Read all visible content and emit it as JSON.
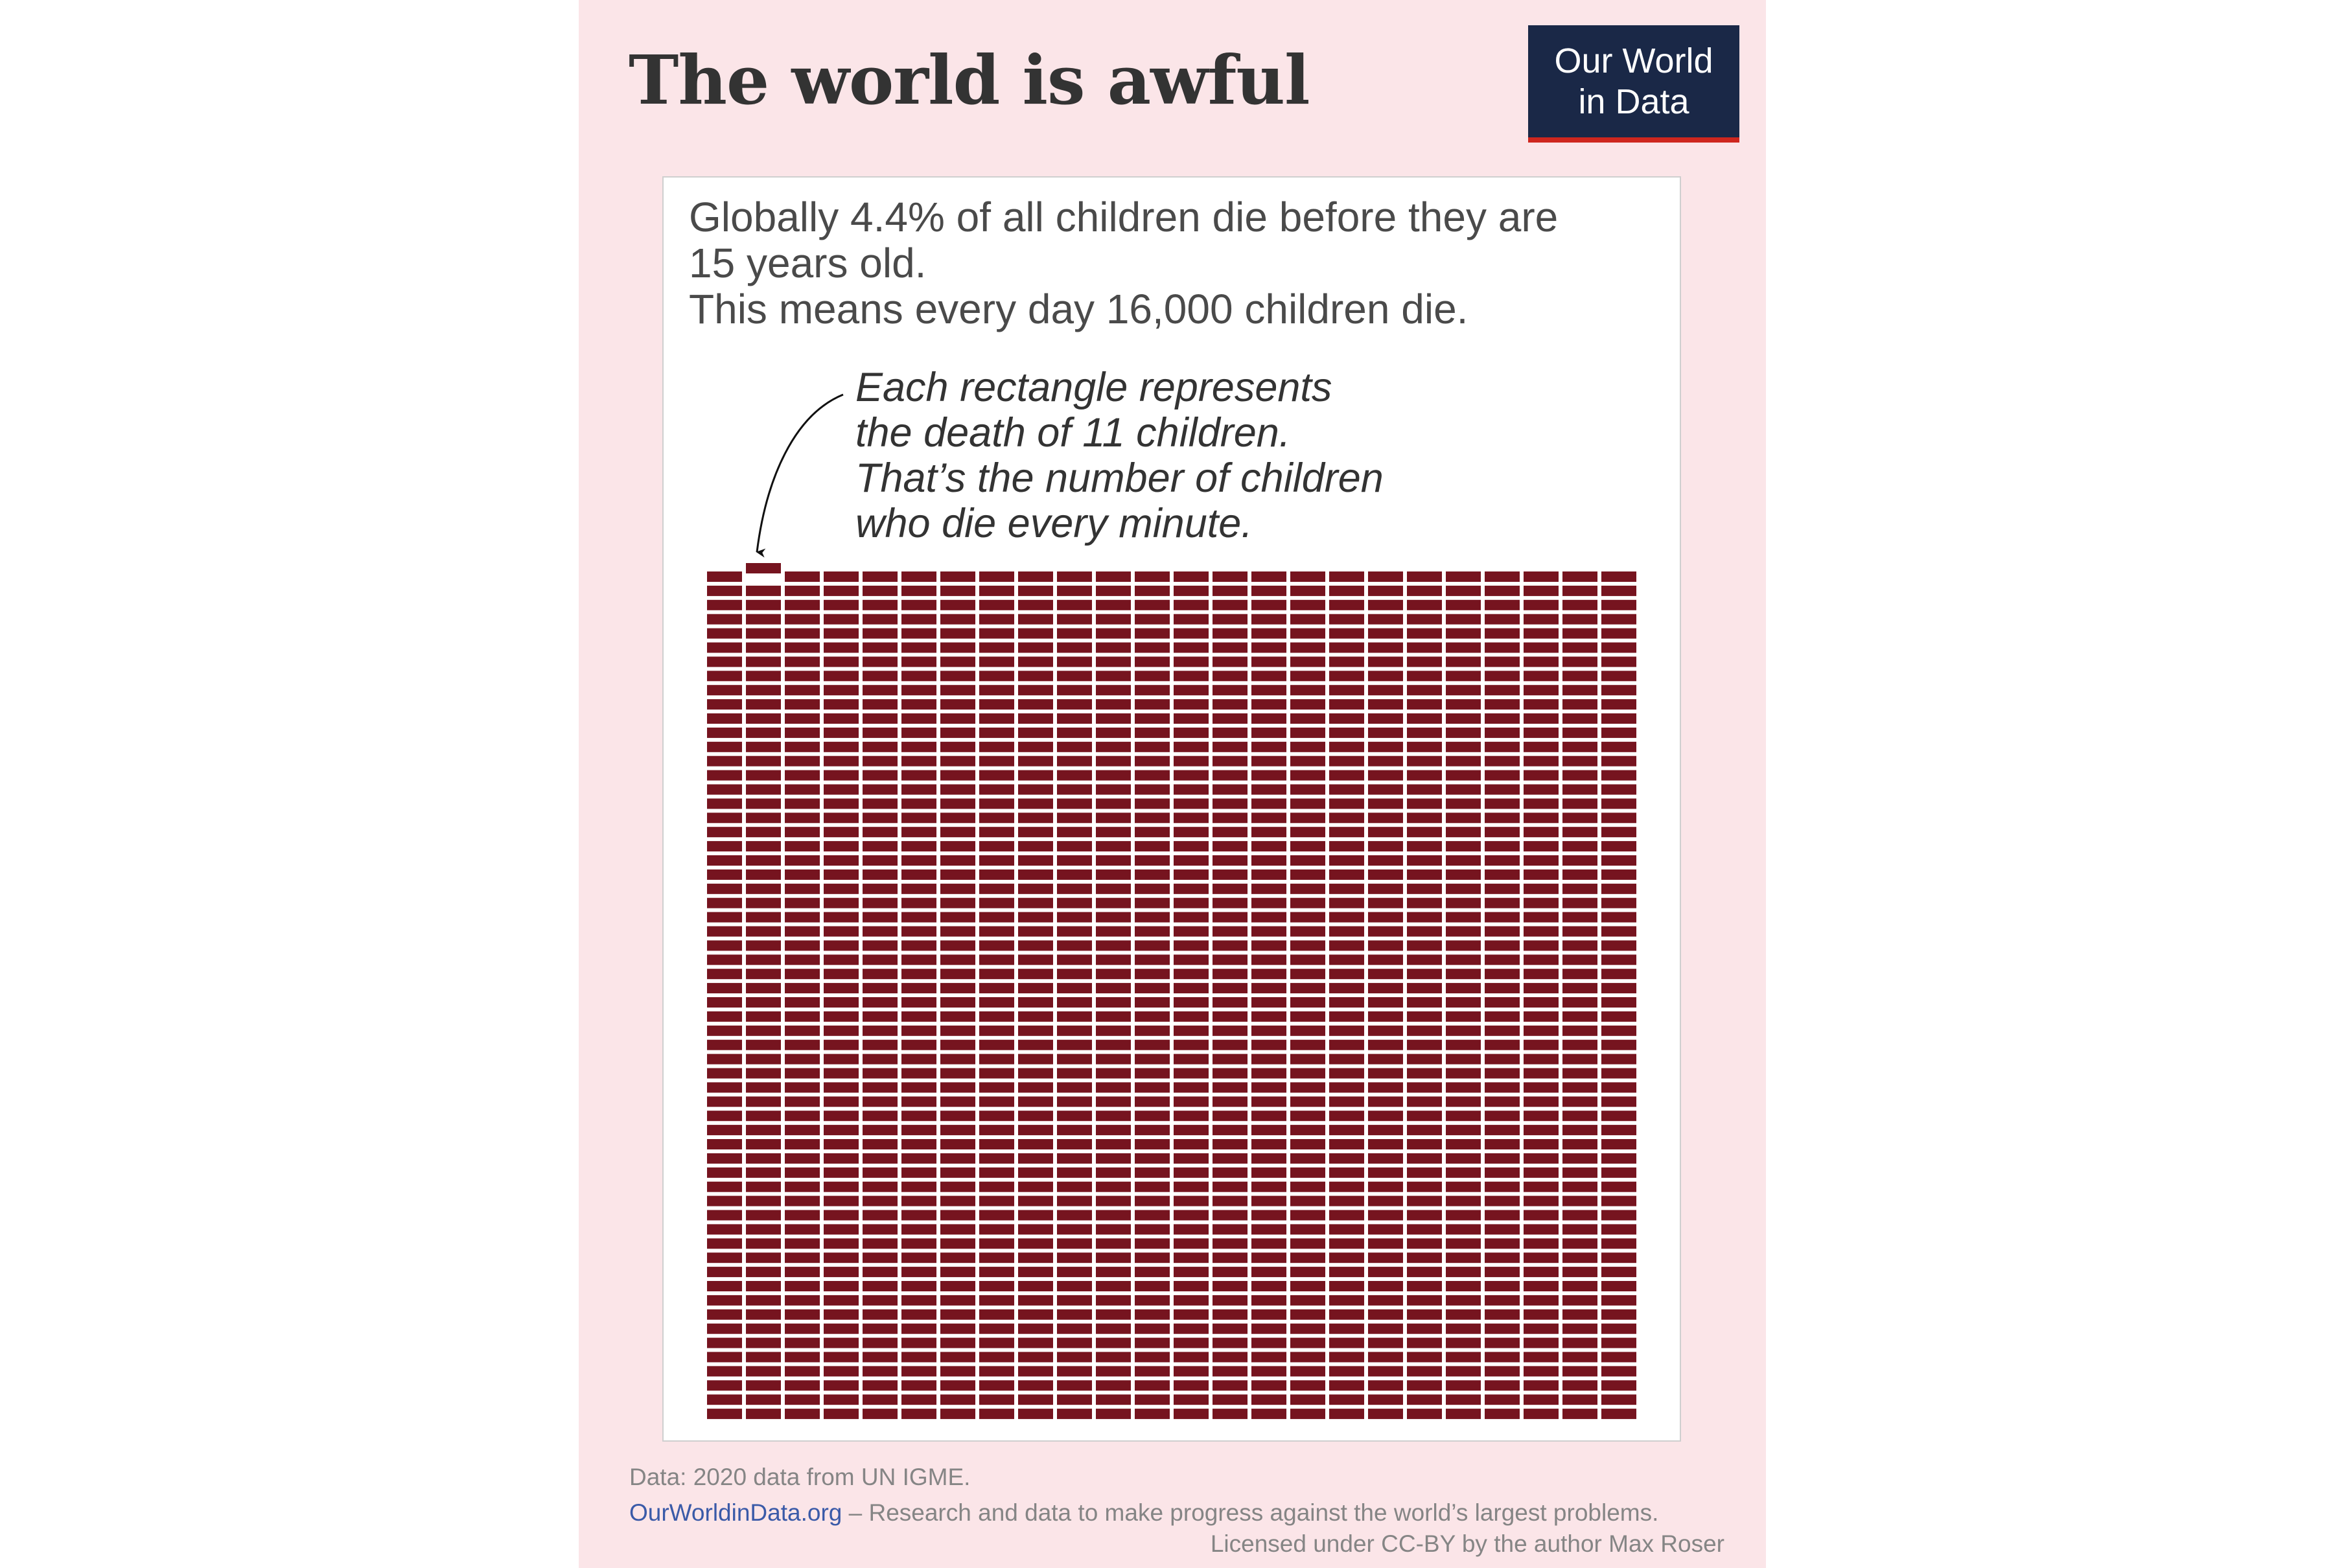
{
  "title": "The world is awful",
  "logo": {
    "line1": "Our World",
    "line2": "in Data"
  },
  "subtitle": {
    "line1": "Globally 4.4% of all children die before they are",
    "line2": "15 years old.",
    "line3": "This means every day 16,000 children die."
  },
  "annotation": {
    "line1": "Each rectangle represents",
    "line2": "the death of 11 children.",
    "line3": "That’s the number of children",
    "line4": "who die every minute."
  },
  "footer": {
    "source": "Data: 2020 data from UN IGME.",
    "link": "OurWorldinData.org",
    "tagline": " – Research and data to make progress against the world’s largest problems.",
    "license": "Licensed under CC-BY by the author Max Roser"
  },
  "colors": {
    "rect": "#76141f",
    "panel": "#fbe5e8",
    "logo_bg": "#1a2847",
    "logo_bar": "#ce261e",
    "link": "#3a5aa8"
  },
  "chart_data": {
    "type": "waffle",
    "columns": 24,
    "rows": 60,
    "count": 1440,
    "children_per_rectangle": 11,
    "highlighted_index": 1,
    "title": "",
    "xlabel": "",
    "ylabel": ""
  }
}
